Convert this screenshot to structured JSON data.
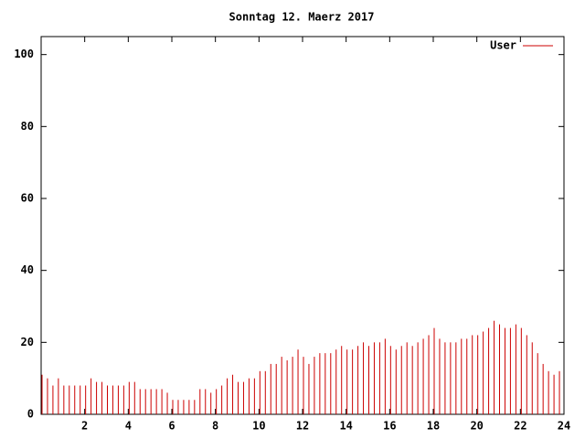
{
  "chart_data": {
    "type": "impulse",
    "title": "Sonntag 12. Maerz 2017",
    "x": [
      0,
      0.25,
      0.5,
      0.75,
      1,
      1.25,
      1.5,
      1.75,
      2,
      2.25,
      2.5,
      2.75,
      3,
      3.25,
      3.5,
      3.75,
      4,
      4.25,
      4.5,
      4.75,
      5,
      5.25,
      5.5,
      5.75,
      6,
      6.25,
      6.5,
      6.75,
      7,
      7.25,
      7.5,
      7.75,
      8,
      8.25,
      8.5,
      8.75,
      9,
      9.25,
      9.5,
      9.75,
      10,
      10.25,
      10.5,
      10.75,
      11,
      11.25,
      11.5,
      11.75,
      12,
      12.25,
      12.5,
      12.75,
      13,
      13.25,
      13.5,
      13.75,
      14,
      14.25,
      14.5,
      14.75,
      15,
      15.25,
      15.5,
      15.75,
      16,
      16.25,
      16.5,
      16.75,
      17,
      17.25,
      17.5,
      17.75,
      18,
      18.25,
      18.5,
      18.75,
      19,
      19.25,
      19.5,
      19.75,
      20,
      20.25,
      20.5,
      20.75,
      21,
      21.25,
      21.5,
      21.75,
      22,
      22.25,
      22.5,
      22.75,
      23,
      23.25,
      23.5,
      23.75
    ],
    "series": [
      {
        "name": "User",
        "color": "#cc0000",
        "values": [
          11,
          10,
          8,
          10,
          8,
          8,
          8,
          8,
          8,
          10,
          9,
          9,
          8,
          8,
          8,
          8,
          9,
          9,
          7,
          7,
          7,
          7,
          7,
          6,
          4,
          4,
          4,
          4,
          4,
          7,
          7,
          6,
          7,
          8,
          10,
          11,
          9,
          9,
          10,
          10,
          12,
          12,
          14,
          14,
          16,
          15,
          16,
          18,
          16,
          14,
          16,
          17,
          17,
          17,
          18,
          19,
          18,
          18,
          19,
          20,
          19,
          20,
          20,
          21,
          19,
          18,
          19,
          20,
          19,
          20,
          21,
          22,
          24,
          21,
          20,
          20,
          20,
          21,
          21,
          22,
          22,
          23,
          24,
          26,
          25,
          24,
          24,
          25,
          24,
          22,
          20,
          17,
          14,
          12,
          11,
          12
        ]
      }
    ],
    "xlim": [
      0,
      24
    ],
    "xticks": [
      2,
      4,
      6,
      8,
      10,
      12,
      14,
      16,
      18,
      20,
      22,
      24
    ],
    "ylim": [
      0,
      105
    ],
    "yticks": [
      0,
      20,
      40,
      60,
      80,
      100
    ],
    "legend": "top-right"
  }
}
